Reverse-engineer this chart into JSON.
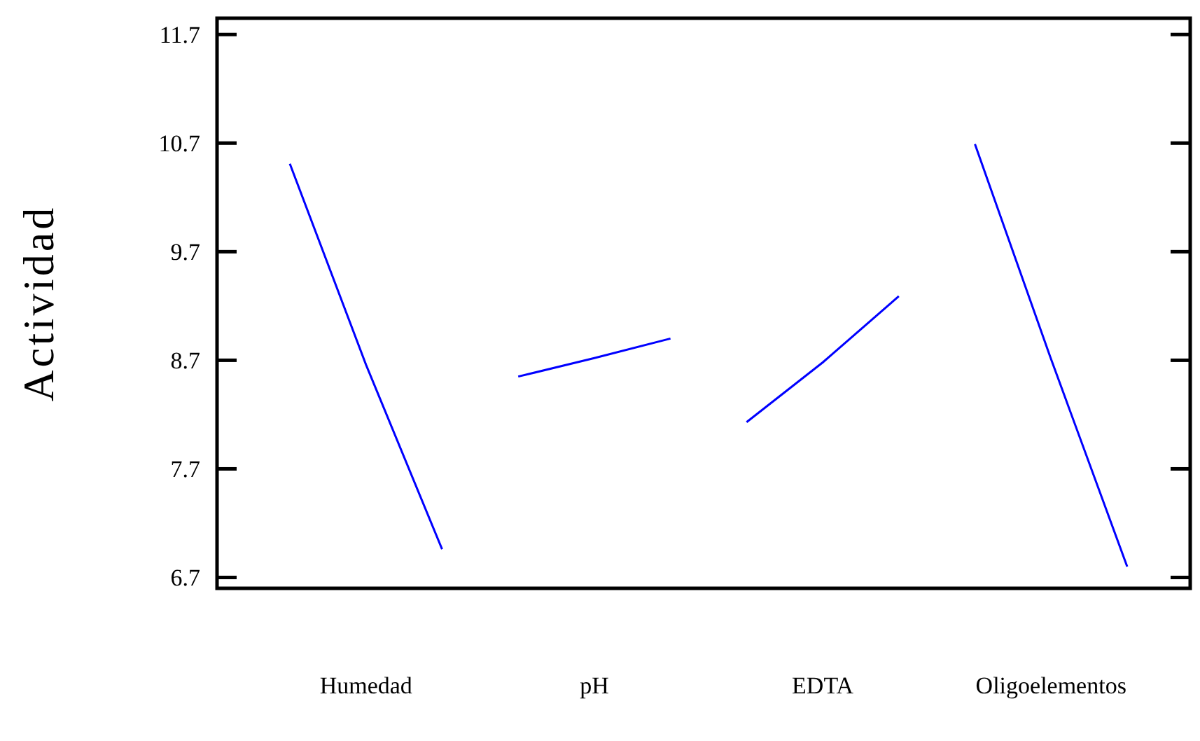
{
  "chart_data": {
    "type": "line",
    "ylabel": "Actividad",
    "categories": [
      null,
      "Humedad",
      null,
      null,
      "pH",
      null,
      null,
      "EDTA",
      null,
      null,
      "Oligoelementos",
      null
    ],
    "ylim": [
      6.6,
      11.85
    ],
    "yticks": [
      6.7,
      7.7,
      8.7,
      9.7,
      10.7,
      11.7
    ],
    "series": [
      {
        "color": "#0000ff",
        "values": [
          10.51,
          8.66,
          6.96,
          null,
          null,
          null,
          null,
          null,
          null,
          null,
          null,
          null
        ]
      },
      {
        "color": "#0000ff",
        "values": [
          null,
          null,
          null,
          8.55,
          8.72,
          8.9,
          null,
          null,
          null,
          null,
          null,
          null
        ]
      },
      {
        "color": "#0000ff",
        "values": [
          null,
          null,
          null,
          null,
          null,
          null,
          8.13,
          8.68,
          9.29,
          null,
          null,
          null
        ]
      },
      {
        "color": "#0000ff",
        "values": [
          null,
          null,
          null,
          null,
          null,
          null,
          null,
          null,
          null,
          10.69,
          8.71,
          6.8
        ]
      }
    ],
    "grid": false,
    "marker": "none",
    "line_style": "solid"
  }
}
